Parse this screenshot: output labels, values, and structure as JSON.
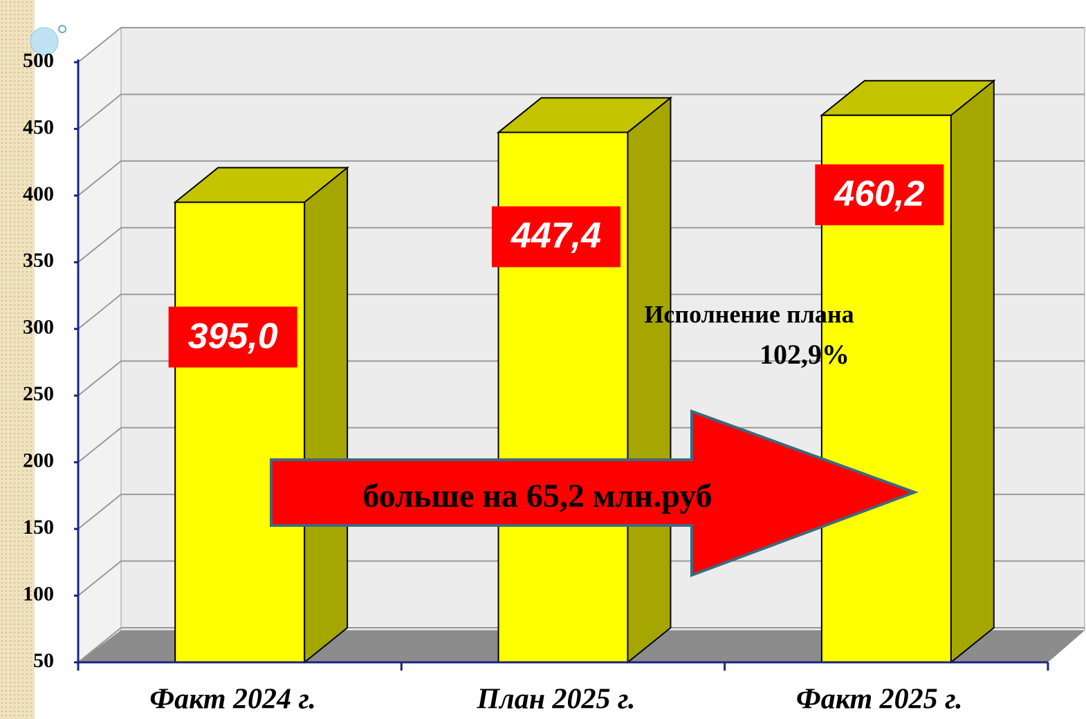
{
  "chart_data": {
    "type": "bar3d",
    "categories": [
      "Факт 2024 г.",
      "План 2025 г.",
      "Факт 2025 г."
    ],
    "values": [
      395.0,
      447.4,
      460.2
    ],
    "value_labels": [
      "395,0",
      "447,4",
      "460,2"
    ],
    "color": "#ffff00",
    "ylim": [
      50,
      500
    ],
    "yticks": [
      50,
      100,
      150,
      200,
      250,
      300,
      350,
      400,
      450,
      500
    ],
    "grid": true,
    "annotations": [
      "Исполнение  плана",
      "102,9%",
      "больше на 65,2 млн.руб"
    ]
  }
}
